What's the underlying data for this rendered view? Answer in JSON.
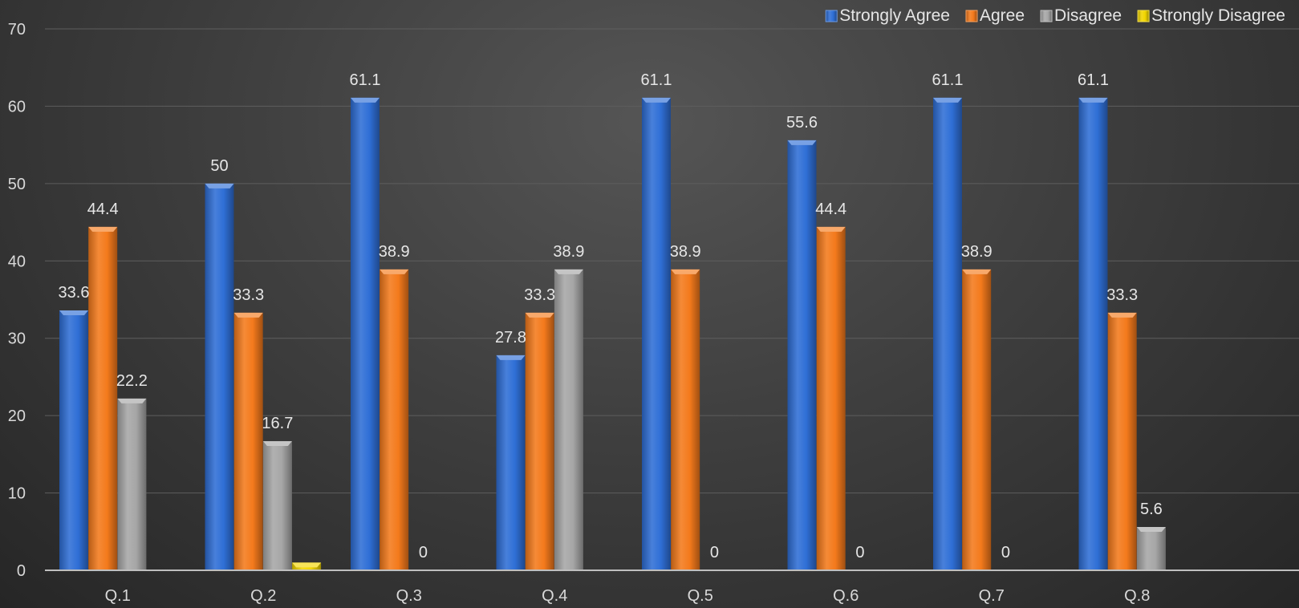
{
  "chart_data": {
    "type": "bar",
    "categories": [
      "Q.1",
      "Q.2",
      "Q.3",
      "Q.4",
      "Q.5",
      "Q.6",
      "Q.7",
      "Q.8"
    ],
    "series": [
      {
        "name": "Strongly Agree",
        "color": "#2f6fd6",
        "values": [
          33.6,
          50,
          61.1,
          27.8,
          61.1,
          55.6,
          61.1,
          61.1
        ],
        "labels": [
          "33.6",
          "50",
          "61.1",
          "27.8",
          "61.1",
          "55.6",
          "61.1",
          "61.1"
        ]
      },
      {
        "name": "Agree",
        "color": "#f47a1c",
        "values": [
          44.4,
          33.3,
          38.9,
          33.3,
          38.9,
          44.4,
          38.9,
          33.3
        ],
        "labels": [
          "44.4",
          "33.3",
          "38.9",
          "33.3",
          "38.9",
          "44.4",
          "38.9",
          "33.3"
        ]
      },
      {
        "name": "Disagree",
        "color": "#a6a6a6",
        "values": [
          22.2,
          16.7,
          0,
          38.9,
          0,
          0,
          0,
          5.6
        ],
        "labels": [
          "22.2",
          "16.7",
          "0",
          "38.9",
          "0",
          "0",
          "0",
          "5.6"
        ]
      },
      {
        "name": "Strongly Disagree",
        "color": "#f2d600",
        "values": [
          null,
          1,
          null,
          null,
          null,
          null,
          null,
          null
        ],
        "labels": [
          null,
          null,
          null,
          null,
          null,
          null,
          null,
          null
        ]
      }
    ],
    "ylim": [
      0,
      70
    ],
    "yticks": [
      "0",
      "10",
      "20",
      "30",
      "40",
      "50",
      "60",
      "70"
    ],
    "title": "",
    "xlabel": "",
    "ylabel": "",
    "grid": true,
    "legend_position": "top-right"
  }
}
